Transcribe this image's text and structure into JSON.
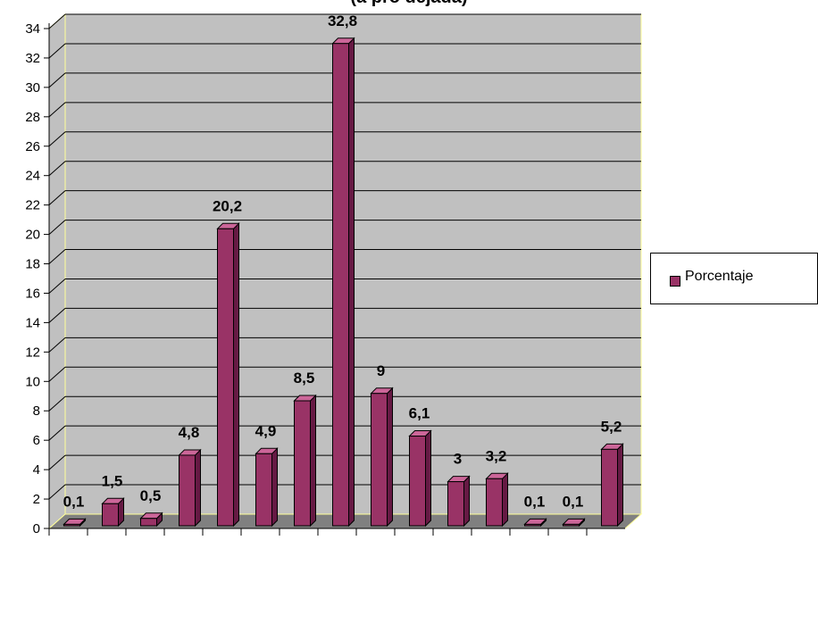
{
  "chart_data": {
    "type": "bar",
    "title": "(a pro    dejada)",
    "categories": [
      "",
      "",
      "",
      "",
      "",
      "",
      "",
      "",
      "",
      "",
      "",
      "",
      "",
      "",
      ""
    ],
    "series": [
      {
        "name": "Porcentaje",
        "values": [
          0.1,
          1.5,
          0.5,
          4.8,
          20.2,
          4.9,
          8.5,
          32.8,
          9,
          6.1,
          3,
          3.2,
          0.1,
          0.1,
          5.2
        ]
      }
    ],
    "value_labels": [
      "0,1",
      "1,5",
      "0,5",
      "4,8",
      "20,2",
      "4,9",
      "8,5",
      "32,8",
      "9",
      "6,1",
      "3",
      "3,2",
      "0,1",
      "0,1",
      "5,2"
    ],
    "yticks": [
      "0",
      "2",
      "4",
      "6",
      "8",
      "10",
      "12",
      "14",
      "16",
      "18",
      "20",
      "22",
      "24",
      "26",
      "28",
      "30",
      "32",
      "34"
    ],
    "ylim": [
      0,
      34
    ],
    "grid": true,
    "legend_position": "right",
    "bar_color": "#993366",
    "plot_bg": "#c0c0c0"
  }
}
